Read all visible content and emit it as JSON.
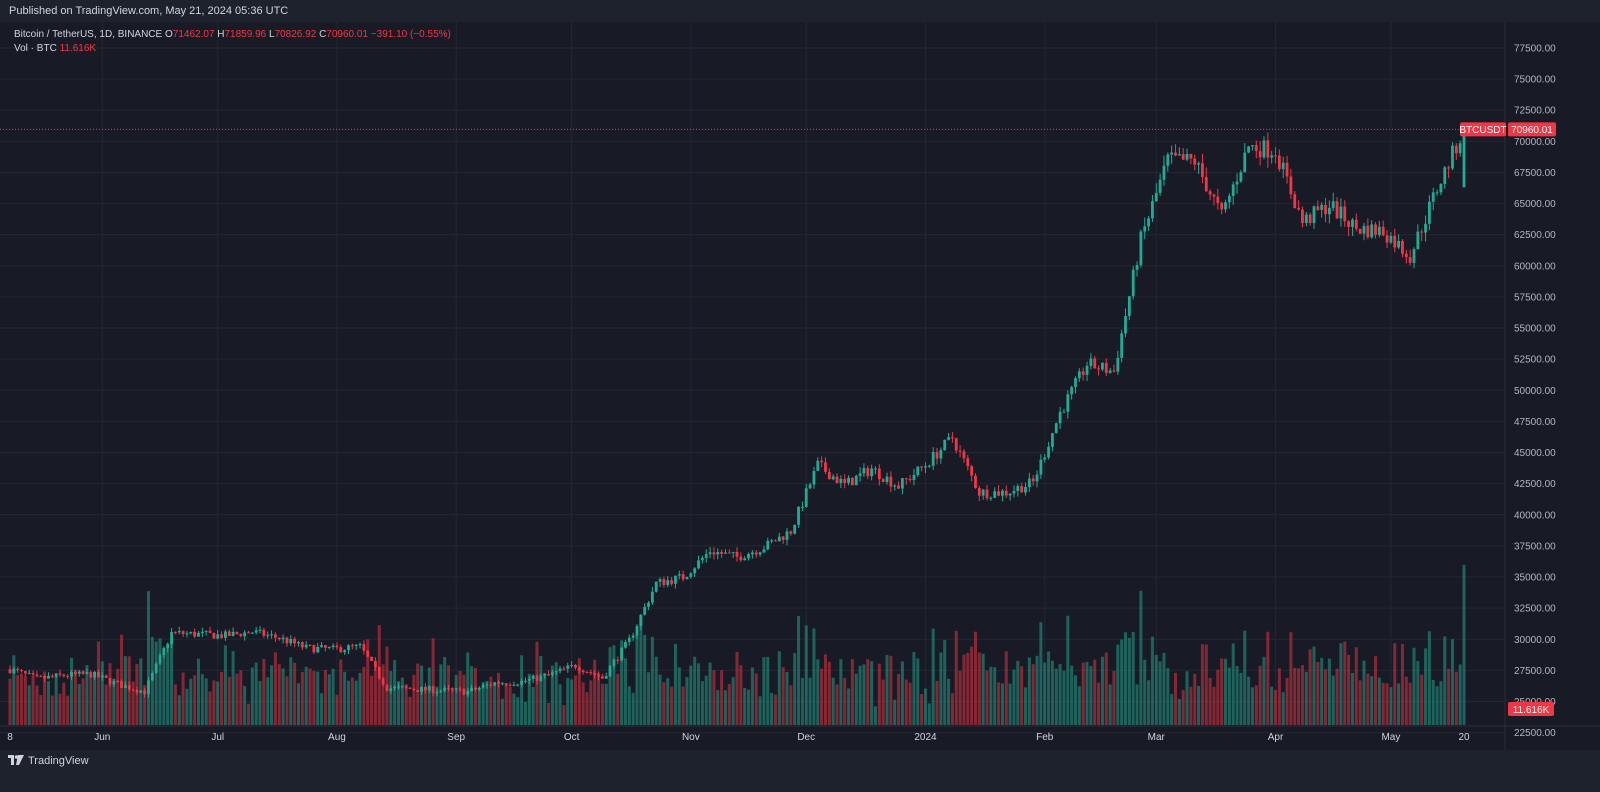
{
  "header": {
    "published": "Published on TradingView.com, May 21, 2024 05:36 UTC"
  },
  "legend": {
    "symbol": "Bitcoin / TetherUS, 1D, BINANCE",
    "o_label": "O",
    "o_value": "71462.07",
    "h_label": "H",
    "h_value": "71859.96",
    "l_label": "L",
    "l_value": "70826.92",
    "c_label": "C",
    "c_value": "70960.01",
    "change": "−391.10 (−0.55%)",
    "vol_label": "Vol · BTC",
    "vol_value": "11.616K"
  },
  "price_tag": {
    "symbol": "BTCUSDT",
    "value": "70960.01"
  },
  "volume_tag": "11.616K",
  "footer": {
    "brand": "TradingView"
  },
  "colors": {
    "up": "#22ab94",
    "down": "#f23645",
    "background": "#181b25",
    "grid": "#232733"
  },
  "chart_data": {
    "type": "candlestick",
    "symbol": "BTCUSDT",
    "interval": "1D",
    "last_close": 70960.01,
    "y_ticks": [
      "77500.00",
      "75000.00",
      "72500.00",
      "70000.00",
      "67500.00",
      "65000.00",
      "62500.00",
      "60000.00",
      "57500.00",
      "55000.00",
      "52500.00",
      "50000.00",
      "47500.00",
      "45000.00",
      "42500.00",
      "40000.00",
      "37500.00",
      "35000.00",
      "32500.00",
      "30000.00",
      "27500.00",
      "25000.00",
      "22500.00"
    ],
    "x_ticks": [
      "8",
      "Jun",
      "Jul",
      "Aug",
      "Sep",
      "Oct",
      "Nov",
      "Dec",
      "2024",
      "Feb",
      "Mar",
      "Apr",
      "May",
      "20"
    ],
    "weekly_closes": [
      [
        "2023-05-08",
        27600
      ],
      [
        "2023-05-15",
        26800
      ],
      [
        "2023-05-22",
        27100
      ],
      [
        "2023-05-29",
        27200
      ],
      [
        "2023-06-05",
        26400
      ],
      [
        "2023-06-12",
        25800
      ],
      [
        "2023-06-19",
        30500
      ],
      [
        "2023-06-26",
        30400
      ],
      [
        "2023-07-03",
        30300
      ],
      [
        "2023-07-10",
        30600
      ],
      [
        "2023-07-17",
        30100
      ],
      [
        "2023-07-24",
        29300
      ],
      [
        "2023-07-31",
        29200
      ],
      [
        "2023-08-07",
        29400
      ],
      [
        "2023-08-14",
        26100
      ],
      [
        "2023-08-21",
        26000
      ],
      [
        "2023-08-28",
        25900
      ],
      [
        "2023-09-04",
        25800
      ],
      [
        "2023-09-11",
        26500
      ],
      [
        "2023-09-18",
        26600
      ],
      [
        "2023-09-25",
        27100
      ],
      [
        "2023-10-02",
        27900
      ],
      [
        "2023-10-09",
        26900
      ],
      [
        "2023-10-16",
        29900
      ],
      [
        "2023-10-23",
        34500
      ],
      [
        "2023-10-30",
        35000
      ],
      [
        "2023-11-06",
        37100
      ],
      [
        "2023-11-13",
        36600
      ],
      [
        "2023-11-20",
        37400
      ],
      [
        "2023-11-27",
        38700
      ],
      [
        "2023-12-04",
        44000
      ],
      [
        "2023-12-11",
        42400
      ],
      [
        "2023-12-18",
        43700
      ],
      [
        "2023-12-25",
        42300
      ],
      [
        "2024-01-01",
        44000
      ],
      [
        "2024-01-08",
        46200
      ],
      [
        "2024-01-15",
        41800
      ],
      [
        "2024-01-22",
        41800
      ],
      [
        "2024-01-29",
        42600
      ],
      [
        "2024-02-05",
        48200
      ],
      [
        "2024-02-12",
        52100
      ],
      [
        "2024-02-19",
        51500
      ],
      [
        "2024-02-26",
        62100
      ],
      [
        "2024-03-04",
        68500
      ],
      [
        "2024-03-11",
        68400
      ],
      [
        "2024-03-18",
        64000
      ],
      [
        "2024-03-25",
        69600
      ],
      [
        "2024-04-01",
        69300
      ],
      [
        "2024-04-08",
        63500
      ],
      [
        "2024-04-15",
        64900
      ],
      [
        "2024-04-22",
        63000
      ],
      [
        "2024-04-29",
        62800
      ],
      [
        "2024-05-06",
        60800
      ],
      [
        "2024-05-13",
        66200
      ],
      [
        "2024-05-20",
        70960
      ]
    ]
  }
}
